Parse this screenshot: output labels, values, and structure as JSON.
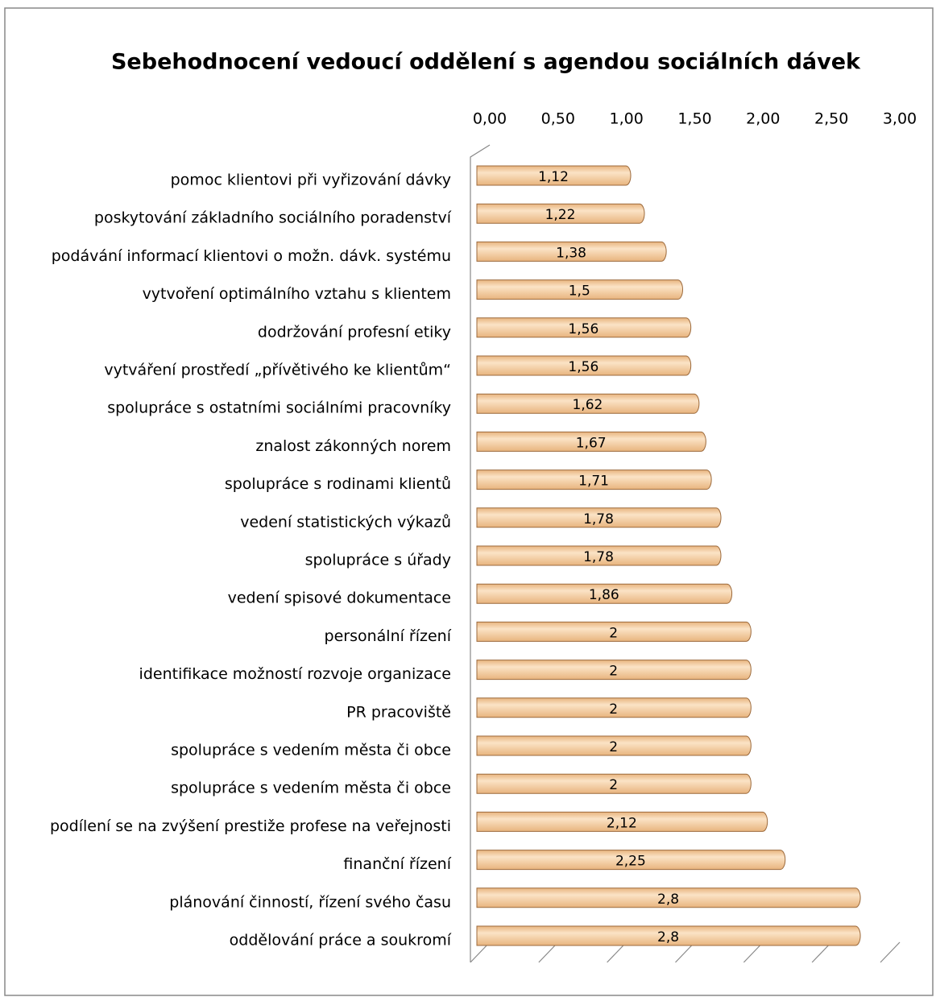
{
  "chart_data": {
    "type": "bar",
    "orientation": "horizontal",
    "title": "Sebehodnocení vedoucí oddělení s agendou sociálních dávek",
    "categories": [
      "pomoc klientovi při vyřizování dávky",
      "poskytování základního sociálního poradenství",
      "podávání informací klientovi o možn. dávk. systému",
      "vytvoření optimálního vztahu s klientem",
      "dodržování profesní etiky",
      "vytváření prostředí „přívětivého ke klientům“",
      "spolupráce s ostatními sociálními pracovníky",
      "znalost zákonných norem",
      "spolupráce s rodinami klientů",
      "vedení statistických výkazů",
      "spolupráce s úřady",
      "vedení spisové dokumentace",
      "personální řízení",
      "identifikace možností rozvoje organizace",
      "PR pracoviště",
      "spolupráce s vedením města či obce",
      "spolupráce s vedením města či obce",
      "podílení se na zvýšení prestiže profese na veřejnosti",
      "finanční řízení",
      "plánování činností, řízení svého času",
      "oddělování práce a soukromí"
    ],
    "values": [
      1.12,
      1.22,
      1.38,
      1.5,
      1.56,
      1.56,
      1.62,
      1.67,
      1.71,
      1.78,
      1.78,
      1.86,
      2,
      2,
      2,
      2,
      2,
      2.12,
      2.25,
      2.8,
      2.8
    ],
    "value_labels": [
      "1,12",
      "1,22",
      "1,38",
      "1,5",
      "1,56",
      "1,56",
      "1,62",
      "1,67",
      "1,71",
      "1,78",
      "1,78",
      "1,86",
      "2",
      "2",
      "2",
      "2",
      "2",
      "2,12",
      "2,25",
      "2,8",
      "2,8"
    ],
    "color": "#e8b47e",
    "xlim": [
      0,
      3
    ],
    "xticks": [
      {
        "value": 0,
        "label": "0,00"
      },
      {
        "value": 0.5,
        "label": "0,50"
      },
      {
        "value": 1,
        "label": "1,00"
      },
      {
        "value": 1.5,
        "label": "1,50"
      },
      {
        "value": 2,
        "label": "2,00"
      },
      {
        "value": 2.5,
        "label": "2,50"
      },
      {
        "value": 3,
        "label": "3,00"
      }
    ]
  }
}
